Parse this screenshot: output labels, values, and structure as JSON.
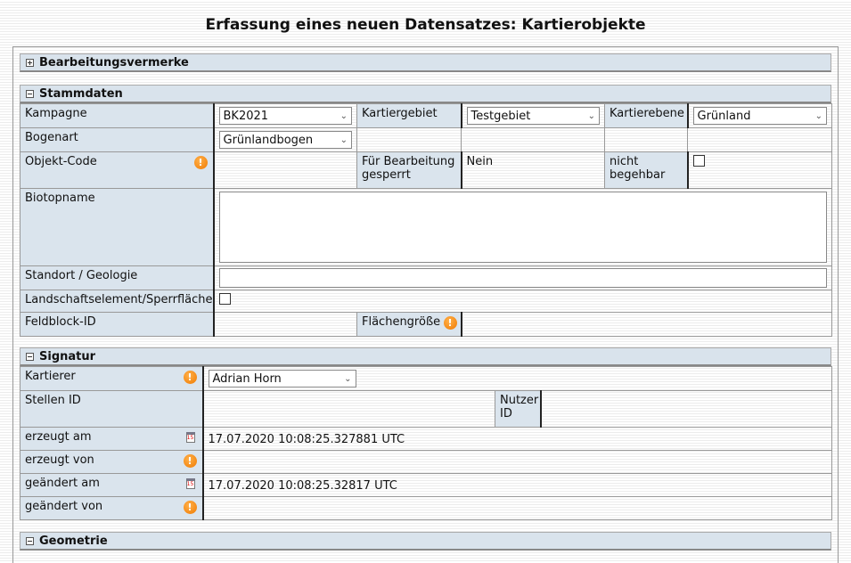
{
  "title": "Erfassung eines neuen Datensatzes: Kartierobjekte",
  "sections": {
    "bearbeitung": {
      "title": "Bearbeitungsvermerke",
      "collapsed": true
    },
    "stammdaten": {
      "title": "Stammdaten",
      "collapsed": false,
      "kampagne_label": "Kampagne",
      "kampagne_value": "BK2021",
      "kartiergebiet_label": "Kartiergebiet",
      "kartiergebiet_value": "Testgebiet",
      "kartierebene_label": "Kartierebene",
      "kartierebene_value": "Grünland",
      "bogenart_label": "Bogenart",
      "bogenart_value": "Grünlandbogen",
      "objektcode_label": "Objekt-Code",
      "gesperrt_label": "Für Bearbeitung gesperrt",
      "gesperrt_value": "Nein",
      "begehbar_label": "nicht begehbar",
      "biotopname_label": "Biotopname",
      "standort_label": "Standort / Geologie",
      "landschaft_label": "Landschaftselement/Sperrfläche",
      "feldblock_label": "Feldblock-ID",
      "flaeche_label": "Flächengröße"
    },
    "signatur": {
      "title": "Signatur",
      "collapsed": false,
      "kartierer_label": "Kartierer",
      "kartierer_value": "Adrian Horn",
      "stellen_label": "Stellen ID",
      "nutzer_label": "Nutzer ID",
      "erzeugt_am_label": "erzeugt am",
      "erzeugt_am_value": "17.07.2020 10:08:25.327881 UTC",
      "erzeugt_von_label": "erzeugt von",
      "geaendert_am_label": "geändert am",
      "geaendert_am_value": "17.07.2020 10:08:25.32817 UTC",
      "geaendert_von_label": "geändert von"
    },
    "geometrie": {
      "title": "Geometrie",
      "collapsed": false
    }
  },
  "icons": {
    "warning": "!",
    "calendar": "15",
    "chevron": "⌄"
  }
}
